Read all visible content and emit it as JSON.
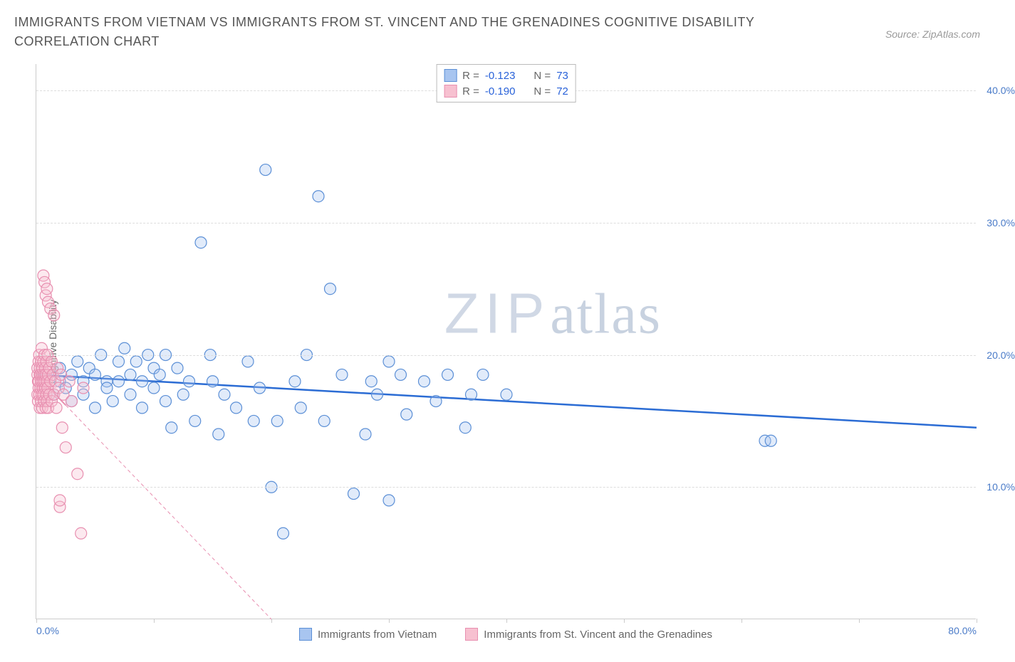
{
  "title": "IMMIGRANTS FROM VIETNAM VS IMMIGRANTS FROM ST. VINCENT AND THE GRENADINES COGNITIVE DISABILITY CORRELATION CHART",
  "source": "Source: ZipAtlas.com",
  "ylabel": "Cognitive Disability",
  "watermark_zip": "ZIP",
  "watermark_atlas": "atlas",
  "chart": {
    "type": "scatter",
    "background_color": "#ffffff",
    "grid_color": "#dddddd",
    "axis_color": "#cccccc",
    "xlim": [
      0,
      80
    ],
    "ylim": [
      0,
      42
    ],
    "x_ticks": [
      0,
      10,
      20,
      30,
      40,
      50,
      60,
      70,
      80
    ],
    "x_tick_labels_shown": {
      "0": "0.0%",
      "80": "80.0%"
    },
    "y_ticks": [
      10,
      20,
      30,
      40
    ],
    "y_tick_labels": {
      "10": "10.0%",
      "20": "20.0%",
      "30": "30.0%",
      "40": "40.0%"
    },
    "label_fontsize": 14,
    "tick_color": "#4a7bc8",
    "marker_radius": 8,
    "marker_fill_opacity": 0.35,
    "marker_stroke_width": 1.2,
    "series": [
      {
        "name": "Immigrants from Vietnam",
        "color_fill": "#a8c5f0",
        "color_stroke": "#5b8fd6",
        "R": "-0.123",
        "N": "73",
        "trendline": {
          "x1": 0,
          "y1": 18.5,
          "x2": 80,
          "y2": 14.5,
          "stroke": "#2b6cd4",
          "width": 2.5,
          "dash": "none"
        },
        "points": [
          [
            1,
            18.5
          ],
          [
            1.5,
            17
          ],
          [
            2,
            19
          ],
          [
            2,
            18
          ],
          [
            2.5,
            17.5
          ],
          [
            3,
            18.5
          ],
          [
            3,
            16.5
          ],
          [
            3.5,
            19.5
          ],
          [
            4,
            18
          ],
          [
            4,
            17
          ],
          [
            4.5,
            19
          ],
          [
            5,
            18.5
          ],
          [
            5,
            16
          ],
          [
            5.5,
            20
          ],
          [
            6,
            18
          ],
          [
            6,
            17.5
          ],
          [
            6.5,
            16.5
          ],
          [
            7,
            19.5
          ],
          [
            7,
            18
          ],
          [
            7.5,
            20.5
          ],
          [
            8,
            18.5
          ],
          [
            8,
            17
          ],
          [
            8.5,
            19.5
          ],
          [
            9,
            16
          ],
          [
            9,
            18
          ],
          [
            9.5,
            20
          ],
          [
            10,
            17.5
          ],
          [
            10,
            19
          ],
          [
            10.5,
            18.5
          ],
          [
            11,
            16.5
          ],
          [
            11,
            20
          ],
          [
            11.5,
            14.5
          ],
          [
            12,
            19
          ],
          [
            12.5,
            17
          ],
          [
            13,
            18
          ],
          [
            13.5,
            15
          ],
          [
            14,
            28.5
          ],
          [
            14.8,
            20
          ],
          [
            15,
            18
          ],
          [
            15.5,
            14
          ],
          [
            16,
            17
          ],
          [
            17,
            16
          ],
          [
            18,
            19.5
          ],
          [
            18.5,
            15
          ],
          [
            19,
            17.5
          ],
          [
            19.5,
            34
          ],
          [
            20,
            10
          ],
          [
            20.5,
            15
          ],
          [
            21,
            6.5
          ],
          [
            22,
            18
          ],
          [
            22.5,
            16
          ],
          [
            23,
            20
          ],
          [
            24,
            32
          ],
          [
            24.5,
            15
          ],
          [
            25,
            25
          ],
          [
            26,
            18.5
          ],
          [
            27,
            9.5
          ],
          [
            28,
            14
          ],
          [
            28.5,
            18
          ],
          [
            29,
            17
          ],
          [
            30,
            19.5
          ],
          [
            30,
            9
          ],
          [
            31,
            18.5
          ],
          [
            31.5,
            15.5
          ],
          [
            33,
            18
          ],
          [
            34,
            16.5
          ],
          [
            35,
            18.5
          ],
          [
            36.5,
            14.5
          ],
          [
            37,
            17
          ],
          [
            38,
            18.5
          ],
          [
            40,
            17
          ],
          [
            62,
            13.5
          ],
          [
            62.5,
            13.5
          ]
        ]
      },
      {
        "name": "Immigrants from St. Vincent and the Grenadines",
        "color_fill": "#f7c0d0",
        "color_stroke": "#e88fb0",
        "R": "-0.190",
        "N": "72",
        "trendline": {
          "x1": 0,
          "y1": 18.5,
          "x2": 20,
          "y2": 0,
          "stroke": "#e88fb0",
          "width": 1,
          "dash": "5,4",
          "solid_until_x": 2.5,
          "solid_until_y": 16.2
        },
        "points": [
          [
            0.1,
            18.5
          ],
          [
            0.1,
            17
          ],
          [
            0.1,
            19
          ],
          [
            0.15,
            18
          ],
          [
            0.15,
            16.5
          ],
          [
            0.2,
            17.5
          ],
          [
            0.2,
            19.5
          ],
          [
            0.2,
            18
          ],
          [
            0.25,
            17
          ],
          [
            0.25,
            20
          ],
          [
            0.3,
            18.5
          ],
          [
            0.3,
            16
          ],
          [
            0.3,
            19
          ],
          [
            0.35,
            17.5
          ],
          [
            0.35,
            18.5
          ],
          [
            0.4,
            16.5
          ],
          [
            0.4,
            19.5
          ],
          [
            0.4,
            18
          ],
          [
            0.45,
            17
          ],
          [
            0.45,
            20.5
          ],
          [
            0.5,
            18.5
          ],
          [
            0.5,
            16
          ],
          [
            0.5,
            19
          ],
          [
            0.55,
            17.5
          ],
          [
            0.55,
            18
          ],
          [
            0.6,
            26
          ],
          [
            0.6,
            19.5
          ],
          [
            0.6,
            17
          ],
          [
            0.65,
            18.5
          ],
          [
            0.65,
            16.5
          ],
          [
            0.7,
            20
          ],
          [
            0.7,
            18
          ],
          [
            0.7,
            25.5
          ],
          [
            0.75,
            17.5
          ],
          [
            0.75,
            19
          ],
          [
            0.8,
            16
          ],
          [
            0.8,
            18.5
          ],
          [
            0.8,
            24.5
          ],
          [
            0.85,
            17
          ],
          [
            0.85,
            19.5
          ],
          [
            0.9,
            18
          ],
          [
            0.9,
            16.5
          ],
          [
            0.9,
            25
          ],
          [
            0.95,
            20
          ],
          [
            0.95,
            17.5
          ],
          [
            1,
            18.5
          ],
          [
            1,
            24
          ],
          [
            1,
            16
          ],
          [
            1.1,
            19
          ],
          [
            1.1,
            17
          ],
          [
            1.2,
            18
          ],
          [
            1.2,
            23.5
          ],
          [
            1.3,
            16.5
          ],
          [
            1.3,
            19.5
          ],
          [
            1.4,
            18.5
          ],
          [
            1.5,
            17
          ],
          [
            1.5,
            23
          ],
          [
            1.6,
            18
          ],
          [
            1.7,
            16
          ],
          [
            1.8,
            19
          ],
          [
            1.9,
            17.5
          ],
          [
            2,
            8.5
          ],
          [
            2,
            9
          ],
          [
            2.1,
            18.5
          ],
          [
            2.2,
            14.5
          ],
          [
            2.3,
            17
          ],
          [
            2.5,
            13
          ],
          [
            2.8,
            18
          ],
          [
            3,
            16.5
          ],
          [
            3.5,
            11
          ],
          [
            3.8,
            6.5
          ],
          [
            4,
            17.5
          ]
        ]
      }
    ]
  },
  "legend_top": {
    "rows": [
      {
        "swatch_fill": "#a8c5f0",
        "swatch_stroke": "#5b8fd6",
        "r_label": "R =",
        "r_val": "-0.123",
        "n_label": "N =",
        "n_val": "73"
      },
      {
        "swatch_fill": "#f7c0d0",
        "swatch_stroke": "#e88fb0",
        "r_label": "R =",
        "r_val": "-0.190",
        "n_label": "N =",
        "n_val": "72"
      }
    ]
  },
  "legend_bottom": {
    "items": [
      {
        "swatch_fill": "#a8c5f0",
        "swatch_stroke": "#5b8fd6",
        "label": "Immigrants from Vietnam"
      },
      {
        "swatch_fill": "#f7c0d0",
        "swatch_stroke": "#e88fb0",
        "label": "Immigrants from St. Vincent and the Grenadines"
      }
    ]
  }
}
